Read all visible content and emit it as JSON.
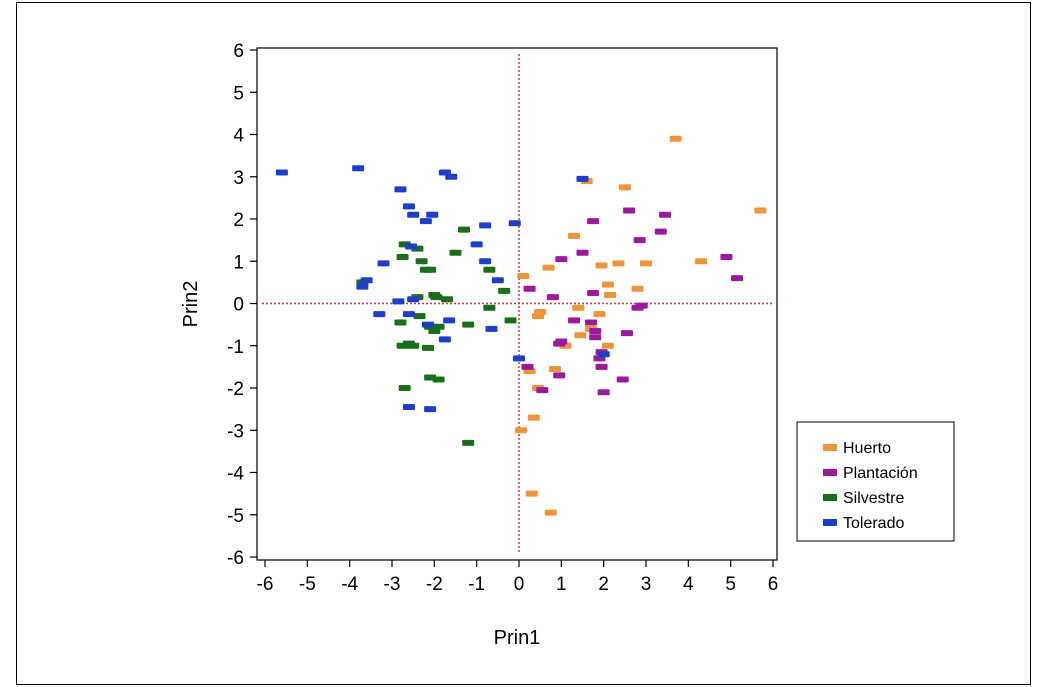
{
  "chart_data": {
    "type": "scatter",
    "xlabel": "Prin1",
    "ylabel": "Prin2",
    "xlim": [
      -6,
      6
    ],
    "ylim": [
      -6,
      6
    ],
    "x_ticks": [
      "-6",
      "-5",
      "-4",
      "-3",
      "-2",
      "-1",
      "0",
      "1",
      "2",
      "3",
      "4",
      "5",
      "6"
    ],
    "y_ticks": [
      "6",
      "5",
      "4",
      "3",
      "2",
      "1",
      "0",
      "-1",
      "-2",
      "-3",
      "-4",
      "-5",
      "-6"
    ],
    "reference_lines": {
      "x": 0,
      "y": 0,
      "color": "#e8303c",
      "style": "dotted"
    },
    "legend_position": "right",
    "series": [
      {
        "name": "Huerto",
        "color": "#f0943a",
        "points": [
          [
            3.7,
            3.9
          ],
          [
            5.7,
            2.2
          ],
          [
            2.5,
            2.75
          ],
          [
            1.6,
            2.9
          ],
          [
            1.3,
            1.6
          ],
          [
            3.0,
            0.95
          ],
          [
            4.3,
            1.0
          ],
          [
            1.95,
            0.9
          ],
          [
            0.7,
            0.85
          ],
          [
            0.1,
            0.65
          ],
          [
            2.1,
            0.45
          ],
          [
            2.8,
            0.35
          ],
          [
            2.15,
            0.2
          ],
          [
            0.5,
            -0.2
          ],
          [
            0.45,
            -0.3
          ],
          [
            1.9,
            -0.25
          ],
          [
            1.4,
            -0.1
          ],
          [
            1.7,
            -0.6
          ],
          [
            1.45,
            -0.75
          ],
          [
            1.1,
            -1.0
          ],
          [
            2.1,
            -1.0
          ],
          [
            0.25,
            -1.6
          ],
          [
            0.85,
            -1.55
          ],
          [
            0.45,
            -2.0
          ],
          [
            0.35,
            -2.7
          ],
          [
            0.05,
            -3.0
          ],
          [
            0.3,
            -4.5
          ],
          [
            0.75,
            -4.95
          ],
          [
            2.35,
            0.95
          ]
        ]
      },
      {
        "name": "Plantación",
        "color": "#9b1a9b",
        "points": [
          [
            2.6,
            2.2
          ],
          [
            3.45,
            2.1
          ],
          [
            1.75,
            1.95
          ],
          [
            2.85,
            1.5
          ],
          [
            3.35,
            1.7
          ],
          [
            1.5,
            1.2
          ],
          [
            4.9,
            1.1
          ],
          [
            1.0,
            1.05
          ],
          [
            5.15,
            0.6
          ],
          [
            0.25,
            0.35
          ],
          [
            0.8,
            0.15
          ],
          [
            1.75,
            0.25
          ],
          [
            2.9,
            -0.05
          ],
          [
            2.8,
            -0.1
          ],
          [
            1.3,
            -0.4
          ],
          [
            1.7,
            -0.45
          ],
          [
            1.8,
            -0.65
          ],
          [
            2.55,
            -0.7
          ],
          [
            1.8,
            -0.8
          ],
          [
            1.0,
            -0.9
          ],
          [
            0.95,
            -0.95
          ],
          [
            1.95,
            -1.15
          ],
          [
            1.9,
            -1.3
          ],
          [
            0.2,
            -1.5
          ],
          [
            1.95,
            -1.5
          ],
          [
            0.95,
            -1.7
          ],
          [
            2.45,
            -1.8
          ],
          [
            0.55,
            -2.05
          ],
          [
            2.0,
            -2.1
          ]
        ]
      },
      {
        "name": "Silvestre",
        "color": "#1a6e1a",
        "points": [
          [
            -1.3,
            1.75
          ],
          [
            -2.7,
            1.4
          ],
          [
            -2.4,
            1.3
          ],
          [
            -1.5,
            1.2
          ],
          [
            -2.75,
            1.1
          ],
          [
            -2.3,
            1.0
          ],
          [
            -2.1,
            0.8
          ],
          [
            -2.2,
            0.8
          ],
          [
            -0.7,
            0.8
          ],
          [
            -3.7,
            0.5
          ],
          [
            -0.35,
            0.3
          ],
          [
            -2.4,
            0.15
          ],
          [
            -2.0,
            0.2
          ],
          [
            -1.95,
            0.15
          ],
          [
            -1.7,
            0.1
          ],
          [
            -0.7,
            -0.1
          ],
          [
            -2.35,
            -0.3
          ],
          [
            -0.2,
            -0.4
          ],
          [
            -2.8,
            -0.45
          ],
          [
            -1.2,
            -0.5
          ],
          [
            -2.1,
            -0.55
          ],
          [
            -1.9,
            -0.55
          ],
          [
            -2.0,
            -0.65
          ],
          [
            -2.6,
            -0.95
          ],
          [
            -2.75,
            -1.0
          ],
          [
            -2.5,
            -1.0
          ],
          [
            -2.15,
            -1.05
          ],
          [
            -2.1,
            -1.75
          ],
          [
            -1.9,
            -1.8
          ],
          [
            -2.7,
            -2.0
          ],
          [
            -1.2,
            -3.3
          ]
        ]
      },
      {
        "name": "Tolerado",
        "color": "#1c3ec8",
        "points": [
          [
            -5.6,
            3.1
          ],
          [
            -3.8,
            3.2
          ],
          [
            -1.75,
            3.1
          ],
          [
            -1.6,
            3.0
          ],
          [
            1.5,
            2.95
          ],
          [
            -2.8,
            2.7
          ],
          [
            -2.6,
            2.3
          ],
          [
            -2.5,
            2.1
          ],
          [
            -2.05,
            2.1
          ],
          [
            -2.2,
            1.95
          ],
          [
            -0.8,
            1.85
          ],
          [
            -0.1,
            1.9
          ],
          [
            -2.55,
            1.35
          ],
          [
            -1.0,
            1.4
          ],
          [
            -3.2,
            0.95
          ],
          [
            -0.5,
            0.55
          ],
          [
            -3.6,
            0.55
          ],
          [
            -3.7,
            0.4
          ],
          [
            -2.85,
            0.05
          ],
          [
            -2.5,
            0.1
          ],
          [
            -3.3,
            -0.25
          ],
          [
            -2.6,
            -0.25
          ],
          [
            -1.65,
            -0.4
          ],
          [
            -2.15,
            -0.5
          ],
          [
            -0.65,
            -0.6
          ],
          [
            -1.75,
            -0.85
          ],
          [
            2.0,
            -1.2
          ],
          [
            0.0,
            -1.3
          ],
          [
            -2.6,
            -2.45
          ],
          [
            -2.1,
            -2.5
          ],
          [
            -0.8,
            1.0
          ]
        ]
      }
    ]
  }
}
